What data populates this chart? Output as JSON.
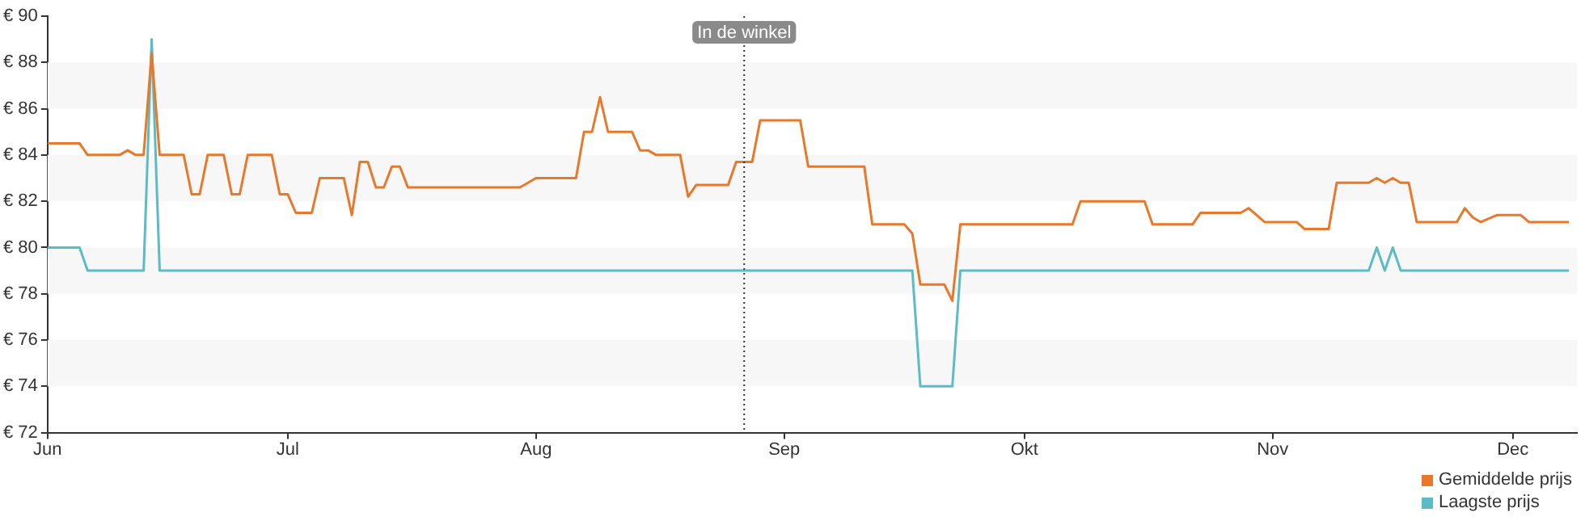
{
  "chart_data": {
    "type": "line",
    "xlim": [
      "--06-01",
      "--12-09"
    ],
    "xticks": [
      {
        "value": "--06-01",
        "label": "Jun"
      },
      {
        "value": "--07-01",
        "label": "Jul"
      },
      {
        "value": "--08-01",
        "label": "Aug"
      },
      {
        "value": "--09-01",
        "label": "Sep"
      },
      {
        "value": "--10-01",
        "label": "Okt"
      },
      {
        "value": "--11-01",
        "label": "Nov"
      },
      {
        "value": "--12-01",
        "label": "Dec"
      }
    ],
    "ylim": [
      72,
      90
    ],
    "yticks": [
      {
        "value": 72,
        "label": "€ 72"
      },
      {
        "value": 74,
        "label": "€ 74"
      },
      {
        "value": 76,
        "label": "€ 76"
      },
      {
        "value": 78,
        "label": "€ 78"
      },
      {
        "value": 80,
        "label": "€ 80"
      },
      {
        "value": 82,
        "label": "€ 82"
      },
      {
        "value": 84,
        "label": "€ 84"
      },
      {
        "value": 86,
        "label": "€ 86"
      },
      {
        "value": 88,
        "label": "€ 88"
      },
      {
        "value": 90,
        "label": "€ 90"
      }
    ],
    "legend": "bottom right",
    "marker": "none",
    "line_style": "solid",
    "ref_lines": [
      {
        "axis": "x",
        "value": "--08-27",
        "label": "In de winkel",
        "line_style": "dotted",
        "color": "#333333"
      }
    ],
    "series": [
      {
        "name": "Gemiddelde prijs",
        "color": "#e8782a",
        "x": [
          "--06-01",
          "--06-05",
          "--06-06",
          "--06-10",
          "--06-11",
          "--06-12",
          "--06-13",
          "--06-14",
          "--06-15",
          "--06-18",
          "--06-19",
          "--06-20",
          "--06-21",
          "--06-23",
          "--06-24",
          "--06-25",
          "--06-26",
          "--06-29",
          "--06-30",
          "--07-01",
          "--07-02",
          "--07-04",
          "--07-05",
          "--07-08",
          "--07-09",
          "--07-10",
          "--07-11",
          "--07-12",
          "--07-13",
          "--07-14",
          "--07-15",
          "--07-16",
          "--07-30",
          "--08-01",
          "--08-06",
          "--08-07",
          "--08-08",
          "--08-09",
          "--08-10",
          "--08-13",
          "--08-14",
          "--08-15",
          "--08-16",
          "--08-19",
          "--08-20",
          "--08-21",
          "--08-25",
          "--08-26",
          "--08-28",
          "--08-29",
          "--09-03",
          "--09-04",
          "--09-11",
          "--09-12",
          "--09-16",
          "--09-17",
          "--09-18",
          "--09-21",
          "--09-22",
          "--09-23",
          "--10-07",
          "--10-08",
          "--10-16",
          "--10-17",
          "--10-22",
          "--10-23",
          "--10-28",
          "--10-29",
          "--10-31",
          "--11-04",
          "--11-05",
          "--11-08",
          "--11-09",
          "--11-13",
          "--11-14",
          "--11-15",
          "--11-16",
          "--11-17",
          "--11-18",
          "--11-19",
          "--11-24",
          "--11-25",
          "--11-26",
          "--11-27",
          "--11-29",
          "--12-02",
          "--12-03",
          "--12-08"
        ],
        "values": [
          84.5,
          84.5,
          84.0,
          84.0,
          84.2,
          84.0,
          84.0,
          88.4,
          84.0,
          84.0,
          82.3,
          82.3,
          84.0,
          84.0,
          82.3,
          82.3,
          84.0,
          84.0,
          82.3,
          82.3,
          81.5,
          81.5,
          83.0,
          83.0,
          81.4,
          83.7,
          83.7,
          82.6,
          82.6,
          83.5,
          83.5,
          82.6,
          82.6,
          83.0,
          83.0,
          85.0,
          85.0,
          86.5,
          85.0,
          85.0,
          84.2,
          84.2,
          84.0,
          84.0,
          82.2,
          82.7,
          82.7,
          83.7,
          83.7,
          85.5,
          85.5,
          83.5,
          83.5,
          81.0,
          81.0,
          80.6,
          78.4,
          78.4,
          77.7,
          81.0,
          81.0,
          82.0,
          82.0,
          81.0,
          81.0,
          81.5,
          81.5,
          81.7,
          81.1,
          81.1,
          80.8,
          80.8,
          82.8,
          82.8,
          83.0,
          82.8,
          83.0,
          82.8,
          82.8,
          81.1,
          81.1,
          81.7,
          81.3,
          81.1,
          81.4,
          81.4,
          81.1,
          81.1
        ]
      },
      {
        "name": "Laagste prijs",
        "color": "#5bbcc6",
        "x": [
          "--06-01",
          "--06-05",
          "--06-06",
          "--06-13",
          "--06-14",
          "--06-15",
          "--09-17",
          "--09-18",
          "--09-22",
          "--09-23",
          "--11-13",
          "--11-14",
          "--11-15",
          "--11-16",
          "--11-17",
          "--12-08"
        ],
        "values": [
          80,
          80,
          79,
          79,
          89,
          79,
          79,
          74,
          74,
          79,
          79,
          80,
          79,
          80,
          79,
          79
        ]
      }
    ]
  }
}
